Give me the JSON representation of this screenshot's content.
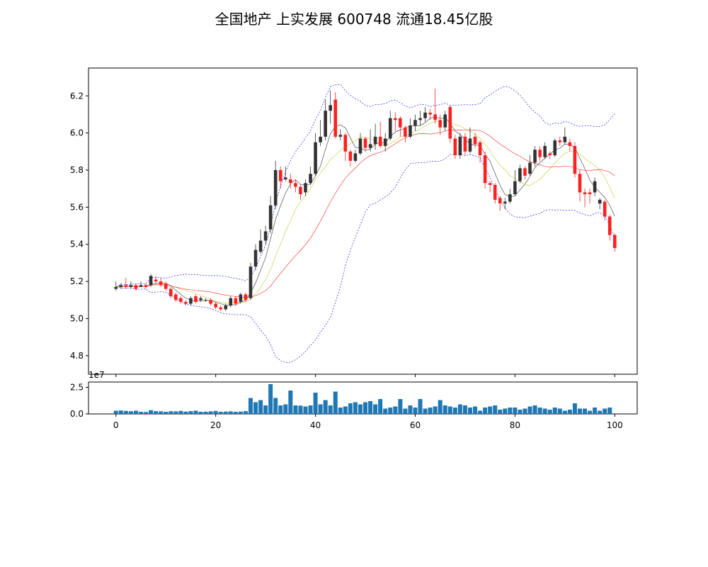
{
  "chart_data": {
    "type": "candlestick",
    "title": "全国地产 上实发展 600748 流通18.45亿股",
    "x_ticks": [
      0,
      20,
      40,
      60,
      80,
      100
    ],
    "price_axis": {
      "ylim": [
        4.7,
        6.35
      ],
      "ticks": [
        "6.2",
        "6.0",
        "5.8",
        "5.6",
        "5.4",
        "5.2",
        "5.0",
        "4.8"
      ]
    },
    "volume_axis": {
      "ylim": [
        0,
        30000000
      ],
      "ticks": [
        "2.5",
        "0.0"
      ],
      "offset_text": "1e7"
    },
    "overlays": [
      {
        "id": "ma5",
        "color": "#333333"
      },
      {
        "id": "ma10",
        "color": "#c8c832"
      },
      {
        "id": "ma20",
        "color": "#ff2020"
      },
      {
        "id": "boll_upper",
        "color": "#2020ff",
        "style": "dashed"
      },
      {
        "id": "boll_lower",
        "color": "#2020ff",
        "style": "dashed"
      }
    ],
    "colors": {
      "up": "#333333",
      "down": "#ff2020",
      "volume": "#1f77b4"
    },
    "candles": [
      [
        5.16,
        5.17,
        5.2,
        5.15
      ],
      [
        5.17,
        5.18,
        5.19,
        5.16
      ],
      [
        5.18,
        5.17,
        5.22,
        5.16
      ],
      [
        5.17,
        5.18,
        5.2,
        5.16
      ],
      [
        5.18,
        5.16,
        5.19,
        5.15
      ],
      [
        5.17,
        5.18,
        5.2,
        5.17
      ],
      [
        5.18,
        5.17,
        5.19,
        5.16
      ],
      [
        5.18,
        5.23,
        5.24,
        5.17
      ],
      [
        5.21,
        5.2,
        5.23,
        5.19
      ],
      [
        5.2,
        5.18,
        5.22,
        5.17
      ],
      [
        5.19,
        5.16,
        5.2,
        5.15
      ],
      [
        5.16,
        5.12,
        5.17,
        5.11
      ],
      [
        5.13,
        5.1,
        5.14,
        5.09
      ],
      [
        5.11,
        5.09,
        5.12,
        5.08
      ],
      [
        5.09,
        5.08,
        5.1,
        5.07
      ],
      [
        5.08,
        5.11,
        5.12,
        5.07
      ],
      [
        5.12,
        5.09,
        5.13,
        5.08
      ],
      [
        5.1,
        5.11,
        5.12,
        5.09
      ],
      [
        5.1,
        5.1,
        5.11,
        5.09
      ],
      [
        5.1,
        5.08,
        5.11,
        5.07
      ],
      [
        5.08,
        5.06,
        5.09,
        5.05
      ],
      [
        5.06,
        5.05,
        5.07,
        5.04
      ],
      [
        5.05,
        5.07,
        5.08,
        5.04
      ],
      [
        5.07,
        5.11,
        5.12,
        5.06
      ],
      [
        5.11,
        5.08,
        5.12,
        5.07
      ],
      [
        5.09,
        5.13,
        5.14,
        5.08
      ],
      [
        5.13,
        5.1,
        5.14,
        5.09
      ],
      [
        5.11,
        5.28,
        5.3,
        5.1
      ],
      [
        5.28,
        5.37,
        5.4,
        5.26
      ],
      [
        5.36,
        5.42,
        5.48,
        5.35
      ],
      [
        5.42,
        5.47,
        5.5,
        5.4
      ],
      [
        5.48,
        5.61,
        5.66,
        5.46
      ],
      [
        5.61,
        5.8,
        5.85,
        5.59
      ],
      [
        5.8,
        5.74,
        5.82,
        5.7
      ],
      [
        5.75,
        5.76,
        5.82,
        5.74
      ],
      [
        5.75,
        5.73,
        5.78,
        5.7
      ],
      [
        5.73,
        5.71,
        5.75,
        5.68
      ],
      [
        5.71,
        5.67,
        5.72,
        5.64
      ],
      [
        5.68,
        5.73,
        5.75,
        5.66
      ],
      [
        5.73,
        5.78,
        5.82,
        5.72
      ],
      [
        5.78,
        5.95,
        6.0,
        5.77
      ],
      [
        5.95,
        5.98,
        6.07,
        5.93
      ],
      [
        5.98,
        6.12,
        6.18,
        5.96
      ],
      [
        6.12,
        6.15,
        6.23,
        6.05
      ],
      [
        6.18,
        5.98,
        6.22,
        5.97
      ],
      [
        5.98,
        5.99,
        6.02,
        5.96
      ],
      [
        5.99,
        5.9,
        6.0,
        5.85
      ],
      [
        5.9,
        5.85,
        5.91,
        5.82
      ],
      [
        5.85,
        5.89,
        5.91,
        5.84
      ],
      [
        5.89,
        5.97,
        6.0,
        5.88
      ],
      [
        5.97,
        5.92,
        5.98,
        5.9
      ],
      [
        5.92,
        5.94,
        6.02,
        5.9
      ],
      [
        5.94,
        5.98,
        6.05,
        5.91
      ],
      [
        5.98,
        5.93,
        6.06,
        5.92
      ],
      [
        5.93,
        5.97,
        6.0,
        5.9
      ],
      [
        5.97,
        6.08,
        6.12,
        5.96
      ],
      [
        6.08,
        6.07,
        6.11,
        6.01
      ],
      [
        6.08,
        6.03,
        6.09,
        5.98
      ],
      [
        6.03,
        5.98,
        6.04,
        5.95
      ],
      [
        5.98,
        6.04,
        6.08,
        5.97
      ],
      [
        6.04,
        6.07,
        6.1,
        6.01
      ],
      [
        6.07,
        6.08,
        6.12,
        6.04
      ],
      [
        6.08,
        6.11,
        6.14,
        6.06
      ],
      [
        6.11,
        6.1,
        6.13,
        6.07
      ],
      [
        6.1,
        6.07,
        6.24,
        6.05
      ],
      [
        6.07,
        6.03,
        6.1,
        5.99
      ],
      [
        6.03,
        6.1,
        6.12,
        6.01
      ],
      [
        6.14,
        5.97,
        6.15,
        5.95
      ],
      [
        5.97,
        5.88,
        5.99,
        5.86
      ],
      [
        5.88,
        5.98,
        6.0,
        5.86
      ],
      [
        5.98,
        5.9,
        6.0,
        5.88
      ],
      [
        5.9,
        5.97,
        6.03,
        5.89
      ],
      [
        5.98,
        5.94,
        6.0,
        5.92
      ],
      [
        5.95,
        5.88,
        5.96,
        5.84
      ],
      [
        5.88,
        5.73,
        5.9,
        5.7
      ],
      [
        5.73,
        5.72,
        5.74,
        5.68
      ],
      [
        5.72,
        5.64,
        5.73,
        5.62
      ],
      [
        5.65,
        5.62,
        5.66,
        5.58
      ],
      [
        5.62,
        5.63,
        5.65,
        5.59
      ],
      [
        5.63,
        5.67,
        5.7,
        5.62
      ],
      [
        5.67,
        5.74,
        5.8,
        5.66
      ],
      [
        5.74,
        5.81,
        5.83,
        5.73
      ],
      [
        5.81,
        5.77,
        5.82,
        5.75
      ],
      [
        5.78,
        5.84,
        5.88,
        5.77
      ],
      [
        5.84,
        5.91,
        5.93,
        5.82
      ],
      [
        5.91,
        5.87,
        5.93,
        5.85
      ],
      [
        5.87,
        5.93,
        5.95,
        5.86
      ],
      [
        5.89,
        5.88,
        5.9,
        5.86
      ],
      [
        5.88,
        5.96,
        5.97,
        5.87
      ],
      [
        5.96,
        5.95,
        5.98,
        5.93
      ],
      [
        5.95,
        5.98,
        6.03,
        5.94
      ],
      [
        5.95,
        5.93,
        5.97,
        5.9
      ],
      [
        5.93,
        5.78,
        5.95,
        5.76
      ],
      [
        5.78,
        5.68,
        5.8,
        5.63
      ],
      [
        5.68,
        5.67,
        5.7,
        5.6
      ],
      [
        5.68,
        5.67,
        5.7,
        5.62
      ],
      [
        5.68,
        5.74,
        5.76,
        5.66
      ],
      [
        5.62,
        5.64,
        5.65,
        5.59
      ],
      [
        5.63,
        5.55,
        5.64,
        5.53
      ],
      [
        5.55,
        5.45,
        5.56,
        5.42
      ],
      [
        5.45,
        5.38,
        5.46,
        5.36
      ]
    ],
    "volume": [
      3.0,
      3.2,
      2.8,
      2.5,
      3.0,
      2.0,
      1.8,
      3.5,
      2.6,
      2.4,
      2.0,
      2.5,
      2.4,
      2.8,
      2.2,
      2.6,
      3.0,
      2.0,
      2.1,
      2.4,
      2.8,
      2.0,
      2.2,
      2.4,
      2.0,
      2.2,
      2.6,
      15.0,
      11.0,
      13.0,
      8.0,
      28.0,
      15.0,
      8.0,
      9.0,
      22.0,
      8.0,
      7.8,
      7.0,
      8.0,
      20.0,
      9.0,
      13.0,
      8.0,
      21.0,
      6.0,
      7.0,
      10.0,
      11.0,
      9.0,
      11.0,
      12.0,
      9.0,
      14.0,
      5.0,
      6.0,
      7.0,
      14.0,
      5.0,
      8.0,
      6.0,
      14.0,
      5.0,
      6.0,
      7.0,
      13.0,
      8.0,
      7.0,
      6.0,
      9.0,
      8.0,
      6.0,
      7.0,
      3.0,
      6.0,
      7.0,
      8.0,
      4.0,
      5.0,
      6.0,
      6.0,
      4.0,
      5.0,
      7.0,
      8.0,
      6.0,
      5.0,
      4.0,
      6.0,
      5.0,
      3.0,
      4.0,
      10.0,
      5.0,
      5.0,
      3.0,
      6.0,
      3.0,
      5.0,
      6.0
    ]
  }
}
